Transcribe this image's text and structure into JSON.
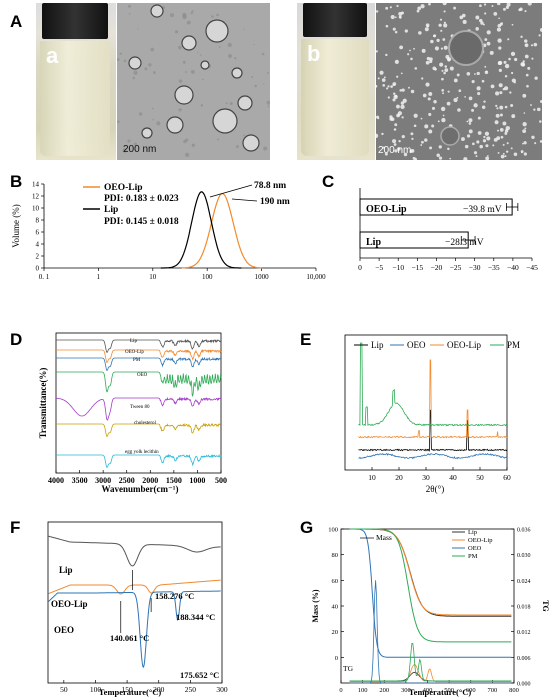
{
  "panels": {
    "A": {
      "label": "A",
      "sub_a": "a",
      "sub_b": "b",
      "scale_a": "200 nm",
      "scale_b": "200 nm"
    },
    "B": {
      "label": "B"
    },
    "C": {
      "label": "C"
    },
    "D": {
      "label": "D"
    },
    "E": {
      "label": "E"
    },
    "F": {
      "label": "F"
    },
    "G": {
      "label": "G"
    }
  },
  "chart_data": [
    {
      "id": "B",
      "type": "line",
      "ylabel": "Volume (%)",
      "xlabel": "",
      "x_scale": "log",
      "xlim": [
        0.1,
        10000
      ],
      "ylim": [
        0,
        14
      ],
      "x_ticks": [
        "0. 1",
        "1",
        "10",
        "100",
        "1000",
        "10,000"
      ],
      "y_ticks": [
        "0",
        "2",
        "4",
        "6",
        "8",
        "10",
        "12",
        "14"
      ],
      "legend": [
        {
          "name": "OEO-Lip",
          "pdi": "PDI:  0.183 ± 0.023",
          "color": "#F28A2E"
        },
        {
          "name": "Lip",
          "pdi": "PDI:  0.145 ± 0.018",
          "color": "#000000"
        }
      ],
      "series": [
        {
          "name": "OEO-Lip",
          "color": "#F28A2E",
          "peak_x": 190,
          "peak_y": 12.4,
          "sigma_log": 0.2
        },
        {
          "name": "Lip",
          "color": "#000000",
          "peak_x": 78.8,
          "peak_y": 12.7,
          "sigma_log": 0.18
        }
      ],
      "annotations": [
        "78.8 nm",
        "190 nm"
      ]
    },
    {
      "id": "C",
      "type": "bar",
      "orientation": "horizontal",
      "categories": [
        "OEO-Lip",
        "Lip"
      ],
      "values": [
        -39.8,
        -28.3
      ],
      "errors": [
        1.5,
        1.8
      ],
      "value_labels": [
        "−39.8 mV",
        "−28.3 mV"
      ],
      "xlim": [
        0,
        -45
      ],
      "x_ticks": [
        "0",
        "−5",
        "−10",
        "−15",
        "−20",
        "−25",
        "−30",
        "−35",
        "−40",
        "−45"
      ]
    },
    {
      "id": "D",
      "type": "line",
      "xlabel": "Wavenumber(cm⁻¹)",
      "ylabel": "Transmittance(%)",
      "xlim": [
        4000,
        500
      ],
      "x_ticks": [
        "4000",
        "3500",
        "3000",
        "2500",
        "2000",
        "1500",
        "1000",
        "500"
      ],
      "series": [
        {
          "name": "Lip",
          "color": "#555555"
        },
        {
          "name": "OEO-Lip",
          "color": "#F28A2E"
        },
        {
          "name": "PM",
          "color": "#2E75B6"
        },
        {
          "name": "OEO",
          "color": "#2EAA55"
        },
        {
          "name": "Tween 80",
          "color": "#A23AC9"
        },
        {
          "name": "cholesterol",
          "color": "#C8A000"
        },
        {
          "name": "egg yolk lecithin",
          "color": "#27B8D8"
        }
      ]
    },
    {
      "id": "E",
      "type": "line",
      "xlabel": "2θ(°)",
      "ylabel": "",
      "xlim": [
        0,
        60
      ],
      "x_ticks": [
        "10",
        "20",
        "30",
        "40",
        "50",
        "60"
      ],
      "legend": [
        "Lip",
        "OEO",
        "OEO-Lip",
        "PM"
      ],
      "series": [
        {
          "name": "Lip",
          "color": "#000000"
        },
        {
          "name": "OEO",
          "color": "#2E75B6"
        },
        {
          "name": "OEO-Lip",
          "color": "#F28A2E"
        },
        {
          "name": "PM",
          "color": "#2EAA55"
        }
      ]
    },
    {
      "id": "F",
      "type": "line",
      "xlabel": "Temperature(°C)",
      "ylabel": "",
      "xlim": [
        25,
        300
      ],
      "x_ticks": [
        "50",
        "100",
        "150",
        "200",
        "250",
        "300"
      ],
      "series": [
        {
          "name": "Lip",
          "color": "#555555",
          "peak": 158.276
        },
        {
          "name": "OEO-Lip",
          "color": "#F28A2E",
          "peaks": [
            140.061,
            188.344
          ]
        },
        {
          "name": "OEO",
          "color": "#2E75B6",
          "peak": 175.652
        }
      ],
      "annotations": [
        "158.276 °C",
        "188.344 °C",
        "140.061 °C",
        "175.652 °C"
      ]
    },
    {
      "id": "G",
      "type": "line",
      "xlabel": "Temperature(°C)",
      "ylabel": "Mass (%)",
      "y2label": "TG",
      "xlim": [
        0,
        800
      ],
      "ylim": [
        -20,
        100
      ],
      "y2lim": [
        0,
        0.036
      ],
      "x_ticks": [
        "0",
        "100",
        "200",
        "300",
        "400",
        "500",
        "600",
        "700",
        "800"
      ],
      "y_ticks": [
        "0",
        "20",
        "40",
        "60",
        "80",
        "100"
      ],
      "y2_ticks": [
        "0.000",
        "0.006",
        "0.012",
        "0.018",
        "0.024",
        "0.030",
        "0.036"
      ],
      "legend": [
        "Lip",
        "OEO-Lip",
        "OEO",
        "PM"
      ],
      "series": [
        {
          "name": "Lip",
          "color": "#333333"
        },
        {
          "name": "OEO-Lip",
          "color": "#F28A2E"
        },
        {
          "name": "OEO",
          "color": "#2E75B6"
        },
        {
          "name": "PM",
          "color": "#2EAA55"
        }
      ],
      "annotations": [
        "Mass",
        "TG"
      ]
    }
  ]
}
